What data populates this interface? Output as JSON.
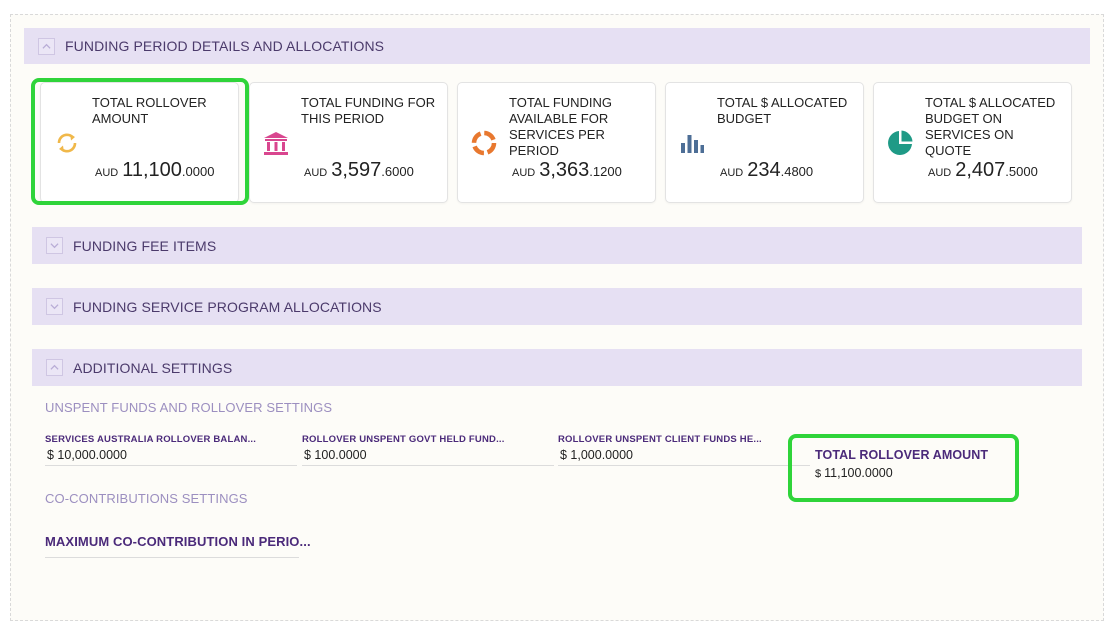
{
  "sections": {
    "funding_period": "FUNDING PERIOD DETAILS AND ALLOCATIONS",
    "fee_items": "FUNDING FEE ITEMS",
    "program_allocations": "FUNDING SERVICE PROGRAM ALLOCATIONS",
    "additional_settings": "ADDITIONAL SETTINGS"
  },
  "cards": [
    {
      "title": "TOTAL ROLLOVER AMOUNT",
      "currency": "AUD",
      "int": "11,100",
      "dec": ".0000",
      "icon": "refresh-icon",
      "color": "#f0b84a"
    },
    {
      "title": "TOTAL FUNDING FOR THIS PERIOD",
      "currency": "AUD",
      "int": "3,597",
      "dec": ".6000",
      "icon": "bank-icon",
      "color": "#d9468f"
    },
    {
      "title": "TOTAL FUNDING AVAILABLE FOR SERVICES PER PERIOD",
      "currency": "AUD",
      "int": "3,363",
      "dec": ".1200",
      "icon": "donut-icon",
      "color": "#e8782f"
    },
    {
      "title": "TOTAL $ ALLOCATED BUDGET",
      "currency": "AUD",
      "int": "234",
      "dec": ".4800",
      "icon": "bar-chart-icon",
      "color": "#4d6e96"
    },
    {
      "title": "TOTAL $ ALLOCATED BUDGET ON SERVICES ON QUOTE",
      "currency": "AUD",
      "int": "2,407",
      "dec": ".5000",
      "icon": "pie-icon",
      "color": "#1f9a86"
    }
  ],
  "additional": {
    "rollover_heading": "UNSPENT FUNDS AND ROLLOVER SETTINGS",
    "fields": [
      {
        "label": "SERVICES AUSTRALIA ROLLOVER BALAN...",
        "value": "$ 10,000.0000"
      },
      {
        "label": "ROLLOVER UNSPENT GOVT HELD FUND...",
        "value": "$ 100.0000"
      },
      {
        "label": "ROLLOVER UNSPENT CLIENT FUNDS HE...",
        "value": "$ 1,000.0000"
      }
    ],
    "total_rollover": {
      "label": "TOTAL ROLLOVER AMOUNT",
      "currency": "$",
      "value": "11,100.0000"
    },
    "cocontrib_heading": "CO-CONTRIBUTIONS SETTINGS",
    "max_cocontrib_label": "MAXIMUM CO-CONTRIBUTION IN PERIO..."
  },
  "colors": {
    "section_bar": "#e6e0f3",
    "highlight": "#2fd43a",
    "label_purple": "#4b2a7a"
  }
}
